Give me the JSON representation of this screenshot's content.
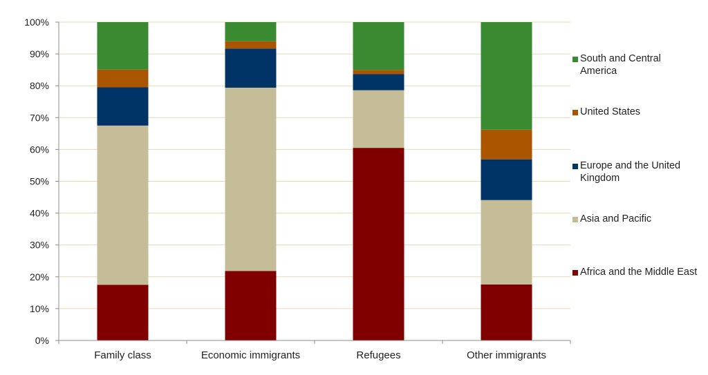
{
  "chart_data": {
    "type": "bar",
    "stacked": true,
    "percent": true,
    "categories": [
      "Family class",
      "Economic immigrants",
      "Refugees",
      "Other immigrants"
    ],
    "ylim": [
      0,
      100
    ],
    "yticks": [
      "0%",
      "10%",
      "20%",
      "30%",
      "40%",
      "50%",
      "60%",
      "70%",
      "80%",
      "90%",
      "100%"
    ],
    "grid": true,
    "legend_position": "right",
    "series": [
      {
        "name": "Africa and the Middle East",
        "color": "#800000",
        "values": [
          17.5,
          21.8,
          60.5,
          17.6
        ]
      },
      {
        "name": "Asia and Pacific",
        "color": "#c4bd97",
        "values": [
          50.0,
          57.6,
          18.1,
          26.5
        ]
      },
      {
        "name": "Europe and the United Kingdom",
        "color": "#003366",
        "values": [
          12.0,
          12.3,
          5.1,
          12.8
        ]
      },
      {
        "name": "United States",
        "color": "#aa5500",
        "values": [
          5.6,
          2.3,
          1.3,
          9.3
        ]
      },
      {
        "name": "South and Central America",
        "color": "#3a8a32",
        "values": [
          14.9,
          6.0,
          15.0,
          33.8
        ]
      }
    ],
    "legend": [
      {
        "label": "South and Central America",
        "color": "#3a8a32"
      },
      {
        "label": "United States",
        "color": "#aa5500"
      },
      {
        "label": "Europe and the United Kingdom",
        "color": "#003366"
      },
      {
        "label": "Asia and Pacific",
        "color": "#c4bd97"
      },
      {
        "label": "Africa and the Middle East",
        "color": "#800000"
      }
    ]
  }
}
